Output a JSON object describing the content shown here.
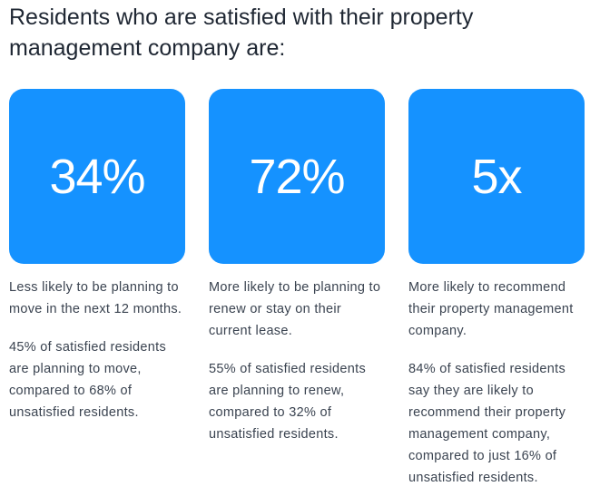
{
  "headline": "Residents who are satisfied with their property management company are:",
  "colors": {
    "card_fill": "#1592ff",
    "headline_text": "#1f2733",
    "body_text": "#3a4350",
    "card_text": "#ffffff"
  },
  "stats": [
    {
      "value": "34%",
      "summary": "Less likely to be planning to move in the next 12 months.",
      "detail": "45% of satisfied residents are planning to move, compared to 68% of unsatisfied residents."
    },
    {
      "value": "72%",
      "summary": "More likely to be planning to renew or stay on their current lease.",
      "detail": "55% of satisfied residents are planning to renew, compared to 32% of unsatisfied residents."
    },
    {
      "value": "5x",
      "summary": "More likely to recommend their property management company.",
      "detail": "84% of satisfied residents say they are likely to recommend their property management company, compared to just 16% of unsatisfied residents."
    }
  ]
}
